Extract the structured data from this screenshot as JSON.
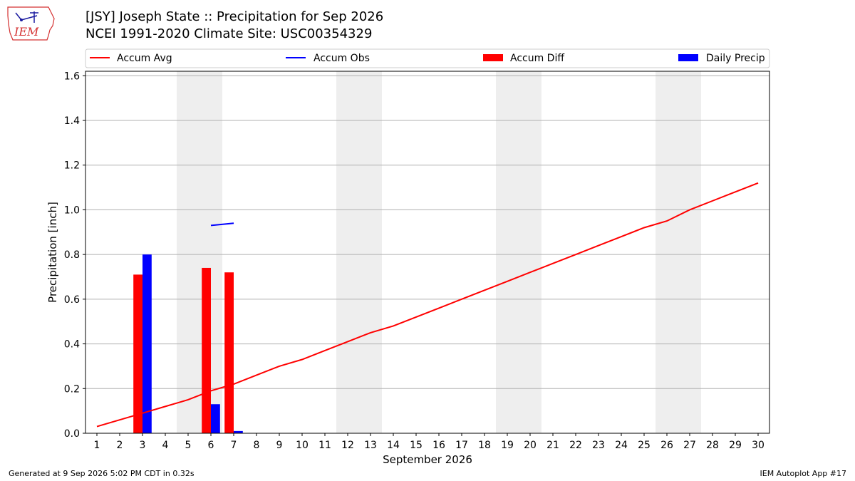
{
  "header": {
    "title_line1": "[JSY] Joseph State :: Precipitation for Sep 2026",
    "title_line2": "NCEI 1991-2020 Climate Site: USC00354329",
    "logo_text": "IEM",
    "logo_icon": "iem-iowa-logo-icon"
  },
  "footer": {
    "generated": "Generated at 9 Sep 2026 5:02 PM CDT in 0.32s",
    "app": "IEM Autoplot App #17"
  },
  "colors": {
    "accum_avg": "#ff0000",
    "accum_obs": "#0000ff",
    "accum_diff": "#ff0000",
    "daily_precip": "#0000ff",
    "weekend_shade": "#eeeeee",
    "grid": "#b0b0b0"
  },
  "chart_data": {
    "type": "bar",
    "xlabel": "September 2026",
    "ylabel": "Precipitation [inch]",
    "ylim": [
      0,
      1.62
    ],
    "xlim": [
      0.5,
      30.5
    ],
    "yticks": [
      "0.0",
      "0.2",
      "0.4",
      "0.6",
      "0.8",
      "1.0",
      "1.2",
      "1.4",
      "1.6"
    ],
    "ytick_values": [
      0,
      0.2,
      0.4,
      0.6,
      0.8,
      1.0,
      1.2,
      1.4,
      1.6
    ],
    "grid": "horizontal",
    "legend_placement": "top",
    "legend": [
      "Accum Avg",
      "Accum Obs",
      "Accum Diff",
      "Daily Precip"
    ],
    "x": [
      1,
      2,
      3,
      4,
      5,
      6,
      7,
      8,
      9,
      10,
      11,
      12,
      13,
      14,
      15,
      16,
      17,
      18,
      19,
      20,
      21,
      22,
      23,
      24,
      25,
      26,
      27,
      28,
      29,
      30
    ],
    "weekend_spans": [
      [
        5,
        6
      ],
      [
        12,
        13
      ],
      [
        19,
        20
      ],
      [
        26,
        27
      ]
    ],
    "series": [
      {
        "name": "Accum Avg",
        "kind": "line",
        "values": [
          0.03,
          0.06,
          0.09,
          0.12,
          0.15,
          0.19,
          0.22,
          0.26,
          0.3,
          0.33,
          0.37,
          0.41,
          0.45,
          0.48,
          0.52,
          0.56,
          0.6,
          0.64,
          0.68,
          0.72,
          0.76,
          0.8,
          0.84,
          0.88,
          0.92,
          0.95,
          1.0,
          1.04,
          1.08,
          1.12
        ]
      },
      {
        "name": "Accum Obs",
        "kind": "line",
        "points": [
          [
            6,
            0.93
          ],
          [
            7,
            0.94
          ]
        ]
      },
      {
        "name": "Accum Diff",
        "kind": "bar",
        "points": [
          [
            3,
            0.71
          ],
          [
            6,
            0.74
          ],
          [
            7,
            0.72
          ]
        ]
      },
      {
        "name": "Daily Precip",
        "kind": "bar",
        "points": [
          [
            3,
            0.8
          ],
          [
            6,
            0.13
          ],
          [
            7,
            0.01
          ]
        ]
      }
    ]
  }
}
